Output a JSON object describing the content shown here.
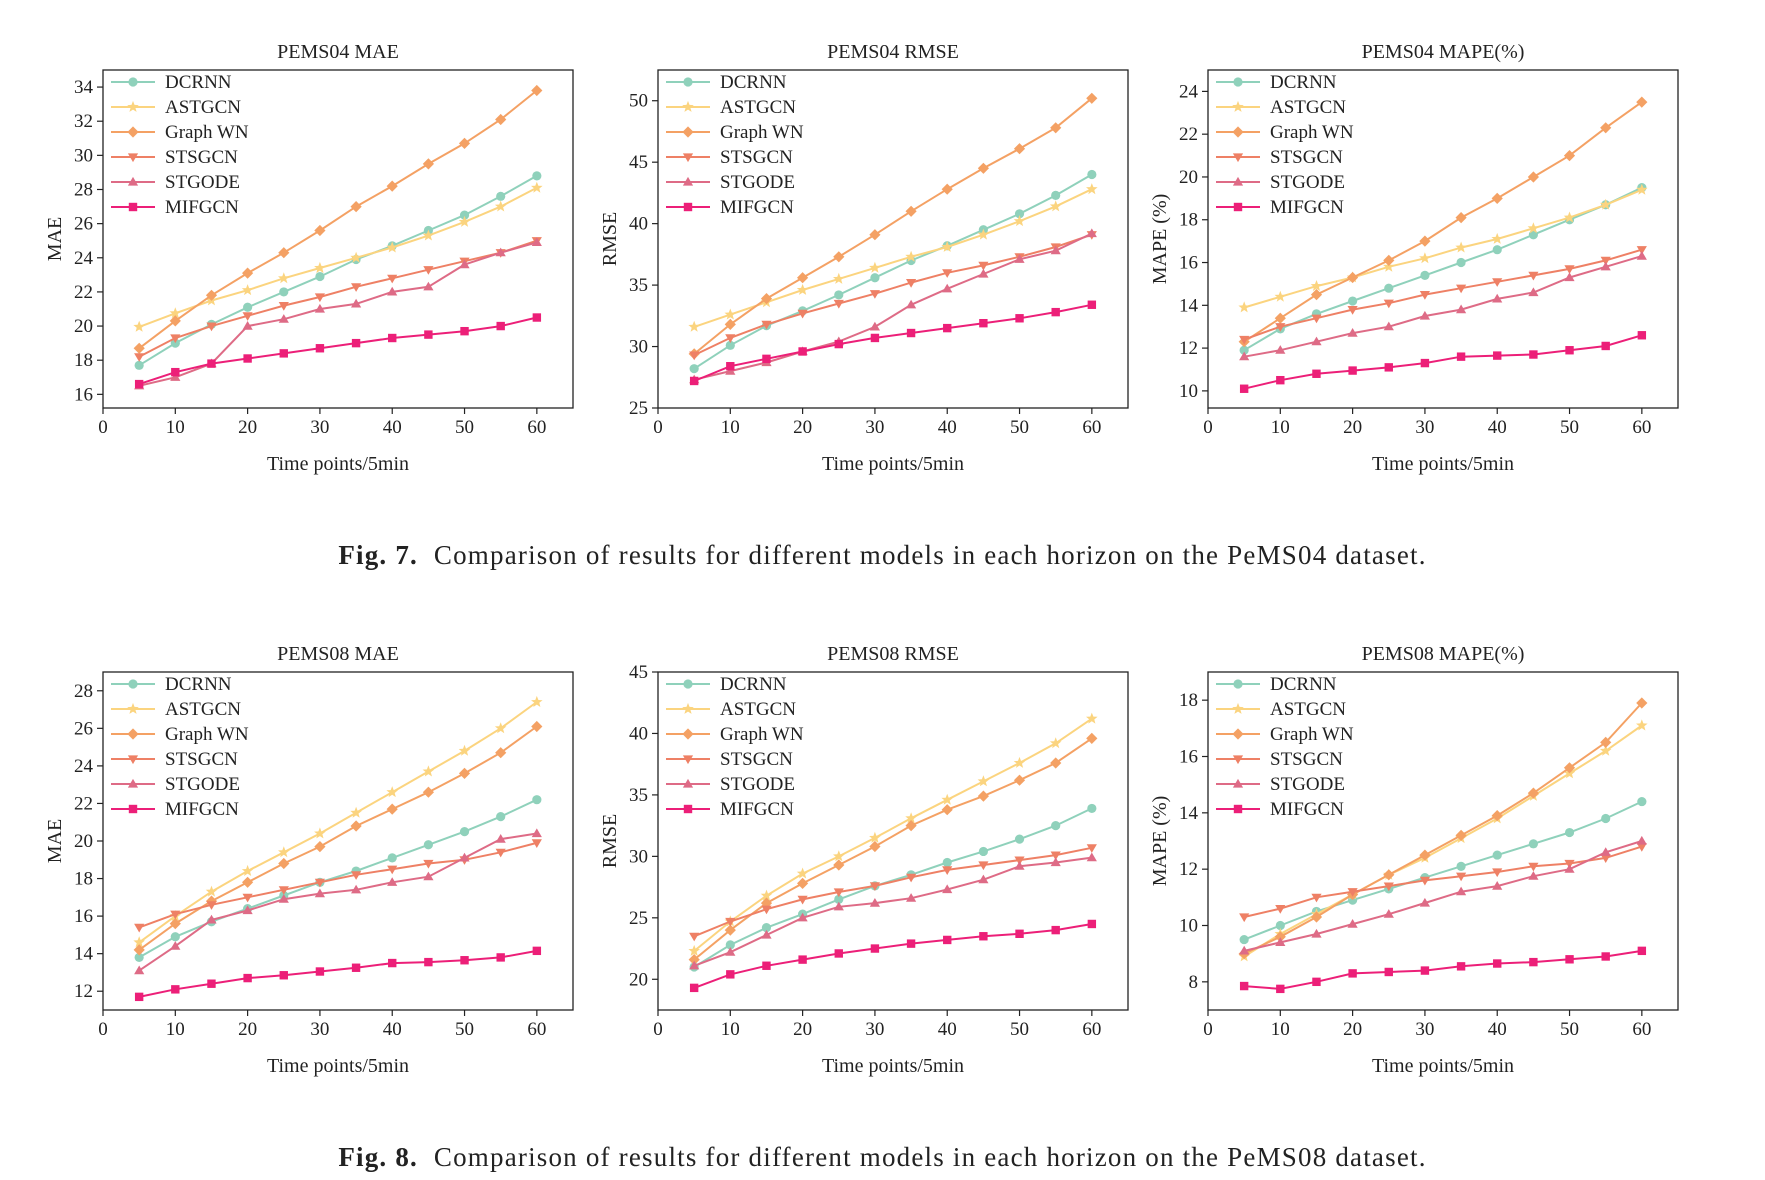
{
  "figures": [
    {
      "caption": {
        "label": "Fig. 7.",
        "text": "Comparison of results for different models in each horizon on the PeMS04 dataset."
      }
    },
    {
      "caption": {
        "label": "Fig. 8.",
        "text": "Comparison of results for different models in each horizon on the PeMS08 dataset."
      }
    }
  ],
  "styles": {
    "DCRNN": {
      "color": "#8fd1bb",
      "marker": "circle"
    },
    "ASTGCN": {
      "color": "#fbd47f",
      "marker": "star"
    },
    "Graph WN": {
      "color": "#f4a164",
      "marker": "diamond"
    },
    "STSGCN": {
      "color": "#ee8065",
      "marker": "triangle-down"
    },
    "STGODE": {
      "color": "#de6b86",
      "marker": "triangle-up"
    },
    "MIFGCN": {
      "color": "#ec1f78",
      "marker": "square"
    }
  },
  "chart_data": [
    {
      "type": "line",
      "title": "PEMS04 MAE",
      "xlabel": "Time points/5min",
      "ylabel": "MAE",
      "xlim": [
        0,
        65
      ],
      "ylim": [
        15.2,
        35
      ],
      "xticks": [
        0,
        10,
        20,
        30,
        40,
        50,
        60
      ],
      "yticks": [
        16,
        18,
        20,
        22,
        24,
        26,
        28,
        30,
        32,
        34
      ],
      "legend": "top-left",
      "x": [
        5,
        10,
        15,
        20,
        25,
        30,
        35,
        40,
        45,
        50,
        55,
        60
      ],
      "series": [
        {
          "name": "DCRNN",
          "values": [
            17.7,
            19.0,
            20.1,
            21.1,
            22.0,
            22.9,
            23.9,
            24.7,
            25.6,
            26.5,
            27.6,
            28.8
          ]
        },
        {
          "name": "ASTGCN",
          "values": [
            19.95,
            20.75,
            21.5,
            22.1,
            22.8,
            23.4,
            24.0,
            24.6,
            25.3,
            26.1,
            27.0,
            28.1
          ]
        },
        {
          "name": "Graph WN",
          "values": [
            18.7,
            20.3,
            21.8,
            23.1,
            24.3,
            25.6,
            27.0,
            28.2,
            29.5,
            30.7,
            32.1,
            33.8
          ]
        },
        {
          "name": "STSGCN",
          "values": [
            18.2,
            19.3,
            20.0,
            20.6,
            21.2,
            21.7,
            22.3,
            22.8,
            23.3,
            23.8,
            24.3,
            25.0
          ]
        },
        {
          "name": "STGODE",
          "values": [
            16.5,
            17.0,
            17.8,
            20.0,
            20.4,
            21.0,
            21.3,
            22.0,
            22.3,
            23.6,
            24.3,
            24.9
          ]
        },
        {
          "name": "MIFGCN",
          "values": [
            16.6,
            17.3,
            17.8,
            18.1,
            18.4,
            18.7,
            19.0,
            19.3,
            19.5,
            19.7,
            20.0,
            20.5
          ]
        }
      ]
    },
    {
      "type": "line",
      "title": "PEMS04 RMSE",
      "xlabel": "Time points/5min",
      "ylabel": "RMSE",
      "xlim": [
        0,
        65
      ],
      "ylim": [
        25,
        52.5
      ],
      "xticks": [
        0,
        10,
        20,
        30,
        40,
        50,
        60
      ],
      "yticks": [
        25,
        30,
        35,
        40,
        45,
        50
      ],
      "legend": "top-left",
      "x": [
        5,
        10,
        15,
        20,
        25,
        30,
        35,
        40,
        45,
        50,
        55,
        60
      ],
      "series": [
        {
          "name": "DCRNN",
          "values": [
            28.2,
            30.1,
            31.7,
            32.9,
            34.2,
            35.6,
            37.0,
            38.2,
            39.5,
            40.8,
            42.3,
            44.0
          ]
        },
        {
          "name": "ASTGCN",
          "values": [
            31.6,
            32.6,
            33.6,
            34.6,
            35.5,
            36.4,
            37.3,
            38.1,
            39.1,
            40.2,
            41.4,
            42.8
          ]
        },
        {
          "name": "Graph WN",
          "values": [
            29.4,
            31.8,
            33.9,
            35.6,
            37.3,
            39.1,
            41.0,
            42.8,
            44.5,
            46.1,
            47.8,
            50.2
          ]
        },
        {
          "name": "STSGCN",
          "values": [
            29.3,
            30.7,
            31.8,
            32.7,
            33.5,
            34.3,
            35.2,
            36.0,
            36.6,
            37.3,
            38.1,
            39.1
          ]
        },
        {
          "name": "STGODE",
          "values": [
            27.3,
            28.0,
            28.7,
            29.6,
            30.4,
            31.6,
            33.4,
            34.7,
            35.9,
            37.1,
            37.8,
            39.2
          ]
        },
        {
          "name": "MIFGCN",
          "values": [
            27.2,
            28.4,
            29.0,
            29.6,
            30.2,
            30.7,
            31.1,
            31.5,
            31.9,
            32.3,
            32.8,
            33.4
          ]
        }
      ]
    },
    {
      "type": "line",
      "title": "PEMS04 MAPE(%)",
      "xlabel": "Time points/5min",
      "ylabel": "MAPE (%)",
      "xlim": [
        0,
        65
      ],
      "ylim": [
        9.2,
        25
      ],
      "xticks": [
        0,
        10,
        20,
        30,
        40,
        50,
        60
      ],
      "yticks": [
        10,
        12,
        14,
        16,
        18,
        20,
        22,
        24
      ],
      "legend": "top-left",
      "x": [
        5,
        10,
        15,
        20,
        25,
        30,
        35,
        40,
        45,
        50,
        55,
        60
      ],
      "series": [
        {
          "name": "DCRNN",
          "values": [
            11.9,
            12.9,
            13.6,
            14.2,
            14.8,
            15.4,
            16.0,
            16.6,
            17.3,
            18.0,
            18.7,
            19.5
          ]
        },
        {
          "name": "ASTGCN",
          "values": [
            13.9,
            14.4,
            14.9,
            15.3,
            15.8,
            16.2,
            16.7,
            17.1,
            17.6,
            18.1,
            18.7,
            19.4
          ]
        },
        {
          "name": "Graph WN",
          "values": [
            12.3,
            13.4,
            14.5,
            15.3,
            16.1,
            17.0,
            18.1,
            19.0,
            20.0,
            21.0,
            22.3,
            23.5
          ]
        },
        {
          "name": "STSGCN",
          "values": [
            12.4,
            13.0,
            13.4,
            13.8,
            14.1,
            14.5,
            14.8,
            15.1,
            15.4,
            15.7,
            16.1,
            16.6
          ]
        },
        {
          "name": "STGODE",
          "values": [
            11.6,
            11.9,
            12.3,
            12.7,
            13.0,
            13.5,
            13.8,
            14.3,
            14.6,
            15.3,
            15.8,
            16.3
          ]
        },
        {
          "name": "MIFGCN",
          "values": [
            10.1,
            10.5,
            10.8,
            10.95,
            11.1,
            11.3,
            11.6,
            11.65,
            11.7,
            11.9,
            12.1,
            12.6
          ]
        }
      ]
    },
    {
      "type": "line",
      "title": "PEMS08 MAE",
      "xlabel": "Time points/5min",
      "ylabel": "MAE",
      "xlim": [
        0,
        65
      ],
      "ylim": [
        11,
        29
      ],
      "xticks": [
        0,
        10,
        20,
        30,
        40,
        50,
        60
      ],
      "yticks": [
        12,
        14,
        16,
        18,
        20,
        22,
        24,
        26,
        28
      ],
      "legend": "top-left",
      "x": [
        5,
        10,
        15,
        20,
        25,
        30,
        35,
        40,
        45,
        50,
        55,
        60
      ],
      "series": [
        {
          "name": "DCRNN",
          "values": [
            13.8,
            14.9,
            15.7,
            16.4,
            17.1,
            17.8,
            18.4,
            19.1,
            19.8,
            20.5,
            21.3,
            22.2
          ]
        },
        {
          "name": "ASTGCN",
          "values": [
            14.6,
            16.0,
            17.3,
            18.4,
            19.4,
            20.4,
            21.5,
            22.6,
            23.7,
            24.8,
            26.0,
            27.4
          ]
        },
        {
          "name": "Graph WN",
          "values": [
            14.2,
            15.6,
            16.8,
            17.8,
            18.8,
            19.7,
            20.8,
            21.7,
            22.6,
            23.6,
            24.7,
            26.1
          ]
        },
        {
          "name": "STSGCN",
          "values": [
            15.4,
            16.1,
            16.6,
            17.0,
            17.4,
            17.8,
            18.2,
            18.5,
            18.8,
            19.0,
            19.4,
            19.9
          ]
        },
        {
          "name": "STGODE",
          "values": [
            13.1,
            14.4,
            15.8,
            16.3,
            16.9,
            17.2,
            17.4,
            17.8,
            18.1,
            19.1,
            20.1,
            20.4
          ]
        },
        {
          "name": "MIFGCN",
          "values": [
            11.7,
            12.1,
            12.4,
            12.7,
            12.85,
            13.05,
            13.25,
            13.5,
            13.55,
            13.65,
            13.8,
            14.15
          ]
        }
      ]
    },
    {
      "type": "line",
      "title": "PEMS08 RMSE",
      "xlabel": "Time points/5min",
      "ylabel": "RMSE",
      "xlim": [
        0,
        65
      ],
      "ylim": [
        17.5,
        45
      ],
      "xticks": [
        0,
        10,
        20,
        30,
        40,
        50,
        60
      ],
      "yticks": [
        20,
        25,
        30,
        35,
        40,
        45
      ],
      "legend": "top-left",
      "x": [
        5,
        10,
        15,
        20,
        25,
        30,
        35,
        40,
        45,
        50,
        55,
        60
      ],
      "series": [
        {
          "name": "DCRNN",
          "values": [
            21.0,
            22.8,
            24.2,
            25.3,
            26.5,
            27.6,
            28.5,
            29.5,
            30.4,
            31.4,
            32.5,
            33.9
          ]
        },
        {
          "name": "ASTGCN",
          "values": [
            22.3,
            24.7,
            26.8,
            28.6,
            30.0,
            31.5,
            33.1,
            34.6,
            36.1,
            37.6,
            39.2,
            41.2
          ]
        },
        {
          "name": "Graph WN",
          "values": [
            21.6,
            24.0,
            26.2,
            27.8,
            29.3,
            30.8,
            32.5,
            33.8,
            34.9,
            36.2,
            37.6,
            39.6
          ]
        },
        {
          "name": "STSGCN",
          "values": [
            23.5,
            24.7,
            25.7,
            26.5,
            27.1,
            27.6,
            28.3,
            28.9,
            29.3,
            29.7,
            30.1,
            30.7
          ]
        },
        {
          "name": "STGODE",
          "values": [
            21.1,
            22.2,
            23.6,
            25.0,
            25.9,
            26.2,
            26.6,
            27.3,
            28.1,
            29.2,
            29.5,
            29.9
          ]
        },
        {
          "name": "MIFGCN",
          "values": [
            19.3,
            20.4,
            21.1,
            21.6,
            22.1,
            22.5,
            22.9,
            23.2,
            23.5,
            23.7,
            24.0,
            24.5
          ]
        }
      ]
    },
    {
      "type": "line",
      "title": "PEMS08 MAPE(%)",
      "xlabel": "Time points/5min",
      "ylabel": "MAPE (%)",
      "xlim": [
        0,
        65
      ],
      "ylim": [
        7,
        19
      ],
      "xticks": [
        0,
        10,
        20,
        30,
        40,
        50,
        60
      ],
      "yticks": [
        8,
        10,
        12,
        14,
        16,
        18
      ],
      "legend": "top-left",
      "x": [
        5,
        10,
        15,
        20,
        25,
        30,
        35,
        40,
        45,
        50,
        55,
        60
      ],
      "series": [
        {
          "name": "DCRNN",
          "values": [
            9.5,
            10.0,
            10.5,
            10.9,
            11.3,
            11.7,
            12.1,
            12.5,
            12.9,
            13.3,
            13.8,
            14.4
          ]
        },
        {
          "name": "ASTGCN",
          "values": [
            8.9,
            9.7,
            10.4,
            11.1,
            11.8,
            12.4,
            13.1,
            13.8,
            14.6,
            15.4,
            16.2,
            17.1
          ]
        },
        {
          "name": "Graph WN",
          "values": [
            9.0,
            9.6,
            10.3,
            11.1,
            11.8,
            12.5,
            13.2,
            13.9,
            14.7,
            15.6,
            16.5,
            17.9
          ]
        },
        {
          "name": "STSGCN",
          "values": [
            10.3,
            10.6,
            11.0,
            11.2,
            11.4,
            11.6,
            11.75,
            11.9,
            12.1,
            12.2,
            12.4,
            12.8
          ]
        },
        {
          "name": "STGODE",
          "values": [
            9.1,
            9.4,
            9.7,
            10.05,
            10.4,
            10.8,
            11.2,
            11.4,
            11.75,
            12.0,
            12.6,
            13.0
          ]
        },
        {
          "name": "MIFGCN",
          "values": [
            7.85,
            7.75,
            8.0,
            8.3,
            8.35,
            8.4,
            8.55,
            8.65,
            8.7,
            8.8,
            8.9,
            9.1
          ]
        }
      ]
    }
  ]
}
